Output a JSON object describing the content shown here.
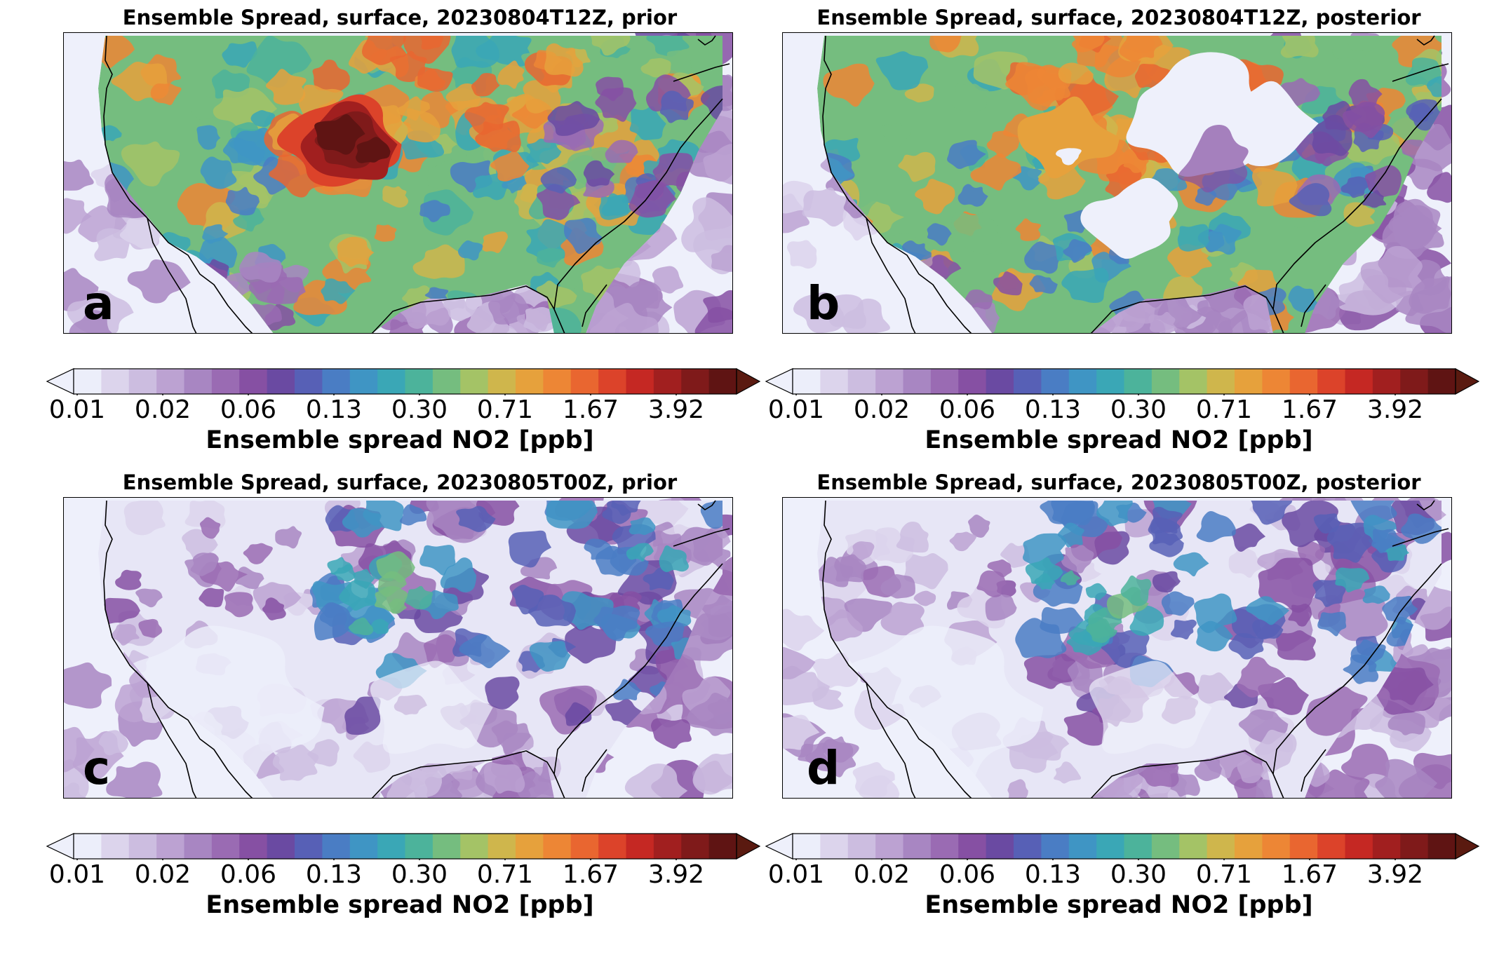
{
  "figure": {
    "panels": [
      {
        "id": "a",
        "title": "Ensemble Spread, surface, 20230804T12Z, prior",
        "letter": "a",
        "state": "prior",
        "time": "20230804T12Z"
      },
      {
        "id": "b",
        "title": "Ensemble Spread, surface, 20230804T12Z, posterior",
        "letter": "b",
        "state": "posterior",
        "time": "20230804T12Z"
      },
      {
        "id": "c",
        "title": "Ensemble Spread, surface, 20230805T00Z, prior",
        "letter": "c",
        "state": "prior",
        "time": "20230805T00Z"
      },
      {
        "id": "d",
        "title": "Ensemble Spread, surface, 20230805T00Z, posterior",
        "letter": "d",
        "state": "posterior",
        "time": "20230805T00Z"
      }
    ],
    "colorbar": {
      "label": "Ensemble spread NO2 [ppb]",
      "ticks": [
        "0.01",
        "0.02",
        "0.06",
        "0.13",
        "0.30",
        "0.71",
        "1.67",
        "3.92"
      ],
      "colors": [
        "#eceefa",
        "#dcd4ec",
        "#ccbde0",
        "#bca2d2",
        "#a886c2",
        "#9a6bb3",
        "#8650a3",
        "#6a4aa2",
        "#5760b6",
        "#4a7dc4",
        "#3f95c4",
        "#3aa7b6",
        "#4cb39b",
        "#75bd7f",
        "#a4c366",
        "#cfb64c",
        "#e6a13c",
        "#ed8635",
        "#e96630",
        "#dc432a",
        "#c52823",
        "#a11f1f",
        "#7f1a1a",
        "#5f1413"
      ],
      "over_color": "#5a1a10",
      "under_color": "#eef0fb",
      "extend": "both"
    }
  }
}
